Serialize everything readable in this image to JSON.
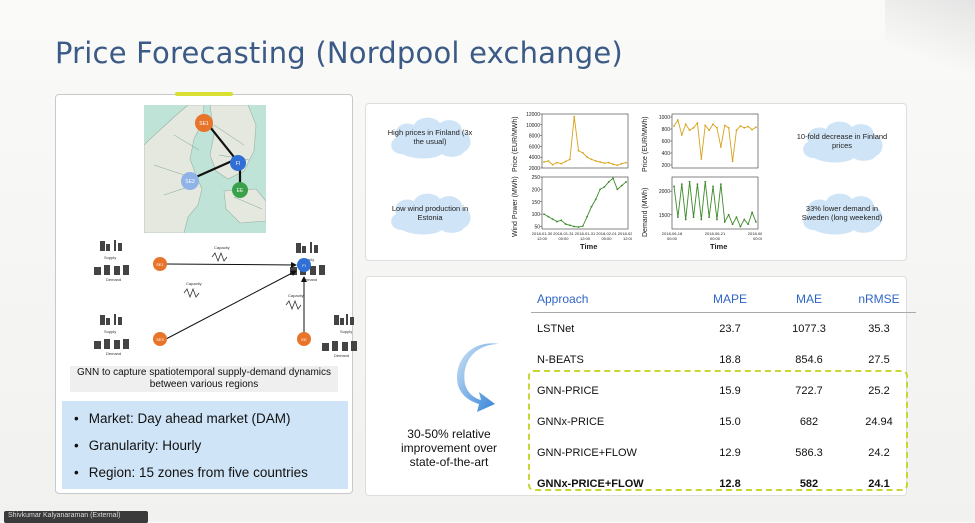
{
  "slide": {
    "title": "Price Forecasting (Nordpool exchange)"
  },
  "map": {
    "nodes": [
      "SE1",
      "FI",
      "SE3",
      "EE"
    ]
  },
  "network": {
    "labels": {
      "supply": "Supply",
      "demand": "Demand",
      "capacity": "Capacity"
    },
    "nodes": [
      "SE1",
      "FI",
      "SE3",
      "EE"
    ]
  },
  "left_panel": {
    "caption_line1": "GNN to capture spatiotemporal supply-demand dynamics",
    "caption_line2": "between various regions",
    "bullets": [
      "Market: Day ahead market (DAM)",
      "Granularity: Hourly",
      "Region: 15 zones from five countries"
    ]
  },
  "clouds": [
    "High prices in Finland (3x the usual)",
    "Low wind production in Estonia",
    "10-fold decrease in Finland prices",
    "33% lower demand in Sweden (long weekend)"
  ],
  "chart_data": [
    {
      "type": "line",
      "ylabel": "Price (EUR/MWh)",
      "xlabel": "",
      "yticks": [
        "12000",
        "10000",
        "8000",
        "6000",
        "4000",
        "2000"
      ],
      "xticks": [],
      "ylim": [
        2000,
        12000
      ],
      "color": "#d8a21b",
      "series": [
        {
          "values": [
            3100,
            3300,
            2600,
            3000,
            2800,
            3200,
            3600,
            11500,
            5200,
            4800,
            4000,
            3600,
            3300,
            3100,
            2900,
            3000,
            2700,
            2500,
            2800,
            3000
          ]
        }
      ]
    },
    {
      "type": "line",
      "ylabel": "Wind Power (MWh)",
      "xlabel": "Time",
      "yticks": [
        "250",
        "200",
        "150",
        "100",
        "50"
      ],
      "xticks": [
        "2018-01-30 12:00",
        "2018-01-31 00:00",
        "2018-01-31 12:00",
        "2018-02-01 00:00",
        "2018-02-01 12:00"
      ],
      "ylim": [
        40,
        250
      ],
      "color": "#3d8a2a",
      "series": [
        {
          "values": [
            100,
            90,
            80,
            70,
            75,
            60,
            55,
            50,
            48,
            52,
            90,
            130,
            160,
            200,
            210,
            230,
            245,
            200,
            215,
            230
          ]
        }
      ]
    },
    {
      "type": "line",
      "ylabel": "Price (EUR/MWh)",
      "xlabel": "",
      "yticks": [
        "1000",
        "800",
        "600",
        "400",
        "200"
      ],
      "xticks": [],
      "ylim": [
        150,
        1050
      ],
      "color": "#d8a21b",
      "series": [
        {
          "values": [
            850,
            950,
            700,
            880,
            780,
            820,
            900,
            300,
            860,
            780,
            880,
            820,
            500,
            860,
            820,
            260,
            780,
            850,
            820,
            840,
            790,
            830
          ]
        }
      ]
    },
    {
      "type": "line",
      "ylabel": "Demand (MWh)",
      "xlabel": "Time",
      "yticks": [
        "2000",
        "1500"
      ],
      "xticks": [
        "2018-06-18 00:00",
        "2018-06-21 00:00",
        "2018-06-24 00:00"
      ],
      "ylim": [
        1200,
        2300
      ],
      "color": "#3d8a2a",
      "series": [
        {
          "values": [
            2100,
            1450,
            2150,
            1400,
            2200,
            1450,
            2150,
            1400,
            2200,
            1450,
            2100,
            1400,
            2150,
            1350,
            1500,
            1300,
            1450,
            1250,
            1400,
            1300,
            1550,
            1350
          ]
        }
      ]
    }
  ],
  "table": {
    "headers": [
      "Approach",
      "MAPE",
      "MAE",
      "nRMSE"
    ],
    "rows": [
      [
        "LSTNet",
        "23.7",
        "1077.3",
        "35.3"
      ],
      [
        "N-BEATS",
        "18.8",
        "854.6",
        "27.5"
      ],
      [
        "GNN-PRICE",
        "15.9",
        "722.7",
        "25.2"
      ],
      [
        "GNNx-PRICE",
        "15.0",
        "682",
        "24.94"
      ],
      [
        "GNN-PRICE+FLOW",
        "12.9",
        "586.3",
        "24.2"
      ],
      [
        "GNNx-PRICE+FLOW",
        "12.8",
        "582",
        "24.1"
      ]
    ]
  },
  "improvement": {
    "line1": "30-50% relative",
    "line2": "improvement over",
    "line3": "state-of-the-art"
  },
  "presenter": {
    "name": "Shivkumar Kalyanaraman (External)"
  },
  "colors": {
    "title": "#3b5a86",
    "accent": "#d8e033",
    "table_header": "#2f66c6",
    "node_orange": "#e8742a",
    "node_blue": "#2f6fd6",
    "node_green": "#3aa14a"
  }
}
